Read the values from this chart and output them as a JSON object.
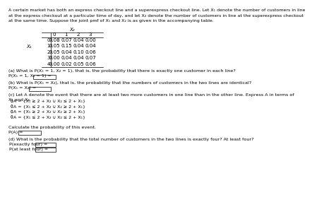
{
  "title_lines": [
    "A certain market has both an express checkout line and a superexpress checkout line. Let X₁ denote the number of customers in line",
    "at the express checkout at a particular time of day, and let X₂ denote the number of customers in line at the superexpress checkout",
    "at the same time. Suppose the joint pmf of X₁ and X₂ is as given in the accompanying table."
  ],
  "x2_label": "X₂",
  "x1_label": "X₁",
  "col_headers": [
    "0",
    "1",
    "2",
    "3"
  ],
  "row_headers": [
    "0",
    "1",
    "2",
    "3",
    "4"
  ],
  "table_data": [
    [
      "0.08",
      "0.07",
      "0.04",
      "0.00"
    ],
    [
      "0.05",
      "0.15",
      "0.04",
      "0.04"
    ],
    [
      "0.05",
      "0.04",
      "0.10",
      "0.06"
    ],
    [
      "0.00",
      "0.04",
      "0.04",
      "0.07"
    ],
    [
      "0.00",
      "0.02",
      "0.05",
      "0.06"
    ]
  ],
  "q_a_line1": "(a) What is P(X₁ = 1, X₂ = 1), that is, the probability that there is exactly one customer in each line?",
  "q_a_label": "P(X₁ = 1, X₂ = 1) =",
  "q_b_line1": "(b) What is P(X₁ = X₂), that is, the probability that the numbers of customers in the two lines are identical?",
  "q_b_label": "P(X₁ = X₂) =",
  "q_c_line1": "(c) Let A denote the event that there are at least two more customers in one line than in the other line. Express A in terms of",
  "q_c_line2": "X₁ and X₂.",
  "q_c_options": [
    "A = {X₁ ≥ 2 + X₂ ∪ X₂ ≤ 2 + X₁}",
    "A = {X₁ ≤ 2 + X₂ ∪ X₂ ≥ 2 + X₁}",
    "A = {X₁ ≥ 2 + X₂ ∪ X₂ ≥ 2 + X₁}",
    "A = {X₁ ≤ 2 + X₂ ∪ X₂ ≤ 2 + X₁}"
  ],
  "q_c_calc": "Calculate the probability of this event.",
  "q_c_label": "P(A) =",
  "q_d_line1": "(d) What is the probability that the total number of customers in the two lines is exactly four? At least four?",
  "q_d_label1": "P(exactly four) =",
  "q_d_label2": "P(at least four) =",
  "bg_color": "#ffffff",
  "text_color": "#000000"
}
